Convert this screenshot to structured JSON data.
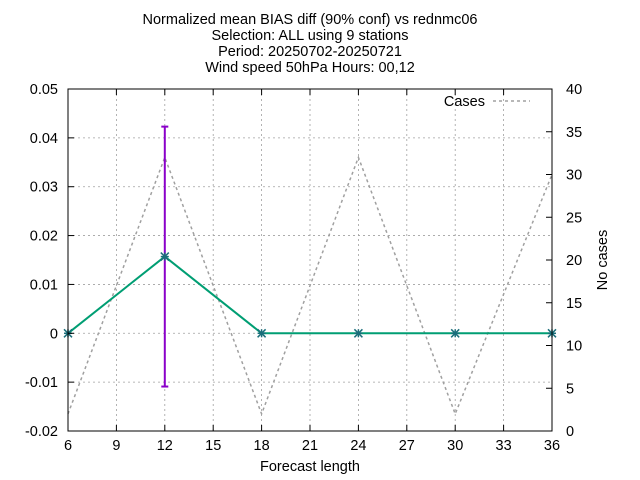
{
  "chart_data": {
    "type": "line",
    "title_lines": [
      "Normalized mean BIAS diff (90% conf) vs rednmc06",
      "Selection: ALL using     9 stations",
      "Period: 20250702-20250721",
      "Wind speed 50hPa   Hours: 00,12"
    ],
    "xlabel": "Forecast length",
    "ylabel_right": "No cases",
    "xlim": [
      6,
      36
    ],
    "ylim": [
      -0.02,
      0.05
    ],
    "y2lim": [
      0,
      40
    ],
    "xticks": [
      "6",
      "9",
      "12",
      "15",
      "18",
      "21",
      "24",
      "27",
      "30",
      "33",
      "36"
    ],
    "yticks": [
      "-0.02",
      "-0.01",
      "0",
      "0.01",
      "0.02",
      "0.03",
      "0.04",
      "0.05"
    ],
    "y2ticks": [
      "0",
      "5",
      "10",
      "15",
      "20",
      "25",
      "30",
      "35",
      "40"
    ],
    "grid": true,
    "legend_placement": "top-right",
    "colors": {
      "bias": "#009e73",
      "errorbar": "#8a00c9",
      "cases": "#a0a0a0"
    },
    "series": [
      {
        "key": "bias",
        "axis": "left",
        "x": [
          6,
          12,
          18,
          24,
          30,
          36
        ],
        "values": [
          0,
          0.0157,
          0,
          0,
          0,
          0
        ],
        "errorbars": [
          {
            "x": 12,
            "low": -0.0109,
            "high": 0.0423
          }
        ]
      },
      {
        "key": "cases",
        "name": "Cases",
        "axis": "right",
        "x": [
          6,
          12,
          18,
          24,
          30,
          36
        ],
        "values": [
          2,
          32,
          2,
          32,
          2,
          30
        ]
      }
    ]
  }
}
